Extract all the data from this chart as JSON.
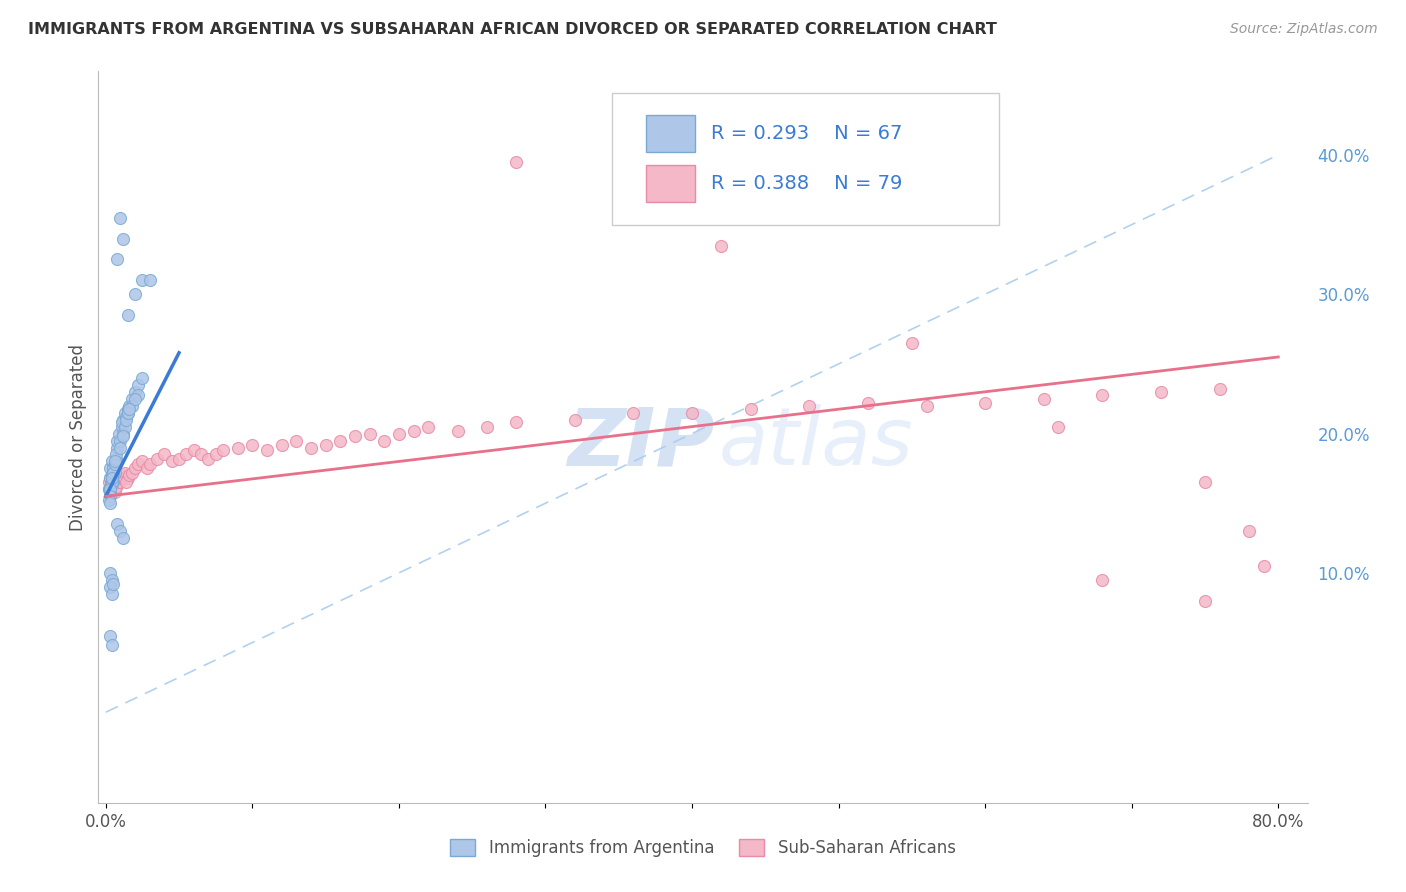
{
  "title": "IMMIGRANTS FROM ARGENTINA VS SUBSAHARAN AFRICAN DIVORCED OR SEPARATED CORRELATION CHART",
  "source": "Source: ZipAtlas.com",
  "ylabel": "Divorced or Separated",
  "xlim": [
    -0.005,
    0.82
  ],
  "ylim": [
    -0.065,
    0.46
  ],
  "x_ticks": [
    0.0,
    0.1,
    0.2,
    0.3,
    0.4,
    0.5,
    0.6,
    0.7,
    0.8
  ],
  "x_tick_labels": [
    "0.0%",
    "",
    "",
    "",
    "",
    "",
    "",
    "",
    "80.0%"
  ],
  "y_ticks_right": [
    0.1,
    0.2,
    0.3,
    0.4
  ],
  "y_tick_labels_right": [
    "10.0%",
    "20.0%",
    "30.0%",
    "40.0%"
  ],
  "argentina_color": "#aec6e8",
  "subsaharan_color": "#f4b8c8",
  "argentina_edge": "#7aaad4",
  "subsaharan_edge": "#e88aa8",
  "trend_argentina_color": "#3a7bd5",
  "trend_subsaharan_color": "#e8708a",
  "diagonal_color": "#aaccee",
  "legend_label1": "Immigrants from Argentina",
  "legend_label2": "Sub-Saharan Africans",
  "watermark_zip": "ZIP",
  "watermark_atlas": "atlas",
  "grid_color": "#cccccc",
  "argentina_x": [
    0.003,
    0.004,
    0.005,
    0.006,
    0.003,
    0.004,
    0.005,
    0.002,
    0.003,
    0.003,
    0.004,
    0.005,
    0.006,
    0.004,
    0.003,
    0.005,
    0.004,
    0.003,
    0.002,
    0.003,
    0.006,
    0.007,
    0.008,
    0.007,
    0.006,
    0.008,
    0.009,
    0.01,
    0.01,
    0.011,
    0.012,
    0.013,
    0.011,
    0.012,
    0.014,
    0.015,
    0.013,
    0.012,
    0.014,
    0.015,
    0.016,
    0.018,
    0.02,
    0.022,
    0.025,
    0.022,
    0.018,
    0.015,
    0.02,
    0.016,
    0.003,
    0.004,
    0.003,
    0.004,
    0.005,
    0.003,
    0.004,
    0.008,
    0.01,
    0.012,
    0.015,
    0.02,
    0.025,
    0.03,
    0.008,
    0.012,
    0.01
  ],
  "argentina_y": [
    0.175,
    0.18,
    0.175,
    0.172,
    0.168,
    0.17,
    0.165,
    0.16,
    0.158,
    0.162,
    0.17,
    0.175,
    0.178,
    0.165,
    0.16,
    0.172,
    0.168,
    0.155,
    0.152,
    0.15,
    0.178,
    0.182,
    0.19,
    0.185,
    0.18,
    0.195,
    0.2,
    0.195,
    0.19,
    0.205,
    0.21,
    0.215,
    0.208,
    0.2,
    0.212,
    0.218,
    0.205,
    0.198,
    0.21,
    0.215,
    0.22,
    0.225,
    0.23,
    0.235,
    0.24,
    0.228,
    0.22,
    0.215,
    0.225,
    0.218,
    0.1,
    0.095,
    0.09,
    0.085,
    0.092,
    0.055,
    0.048,
    0.135,
    0.13,
    0.125,
    0.285,
    0.3,
    0.31,
    0.31,
    0.325,
    0.34,
    0.355
  ],
  "subsaharan_x": [
    0.002,
    0.003,
    0.004,
    0.005,
    0.003,
    0.004,
    0.005,
    0.002,
    0.003,
    0.004,
    0.005,
    0.006,
    0.007,
    0.008,
    0.006,
    0.007,
    0.008,
    0.009,
    0.01,
    0.01,
    0.012,
    0.013,
    0.015,
    0.014,
    0.016,
    0.018,
    0.02,
    0.022,
    0.025,
    0.028,
    0.03,
    0.035,
    0.04,
    0.045,
    0.05,
    0.055,
    0.06,
    0.065,
    0.07,
    0.075,
    0.08,
    0.09,
    0.1,
    0.11,
    0.12,
    0.13,
    0.14,
    0.15,
    0.16,
    0.17,
    0.18,
    0.19,
    0.2,
    0.21,
    0.22,
    0.24,
    0.26,
    0.28,
    0.32,
    0.36,
    0.4,
    0.44,
    0.48,
    0.52,
    0.56,
    0.6,
    0.64,
    0.68,
    0.72,
    0.76,
    0.28,
    0.42,
    0.55,
    0.65,
    0.75,
    0.78,
    0.79,
    0.75,
    0.68
  ],
  "subsaharan_y": [
    0.165,
    0.168,
    0.17,
    0.172,
    0.162,
    0.165,
    0.168,
    0.16,
    0.158,
    0.165,
    0.168,
    0.17,
    0.162,
    0.165,
    0.158,
    0.162,
    0.165,
    0.168,
    0.17,
    0.165,
    0.168,
    0.172,
    0.168,
    0.165,
    0.17,
    0.172,
    0.175,
    0.178,
    0.18,
    0.175,
    0.178,
    0.182,
    0.185,
    0.18,
    0.182,
    0.185,
    0.188,
    0.185,
    0.182,
    0.185,
    0.188,
    0.19,
    0.192,
    0.188,
    0.192,
    0.195,
    0.19,
    0.192,
    0.195,
    0.198,
    0.2,
    0.195,
    0.2,
    0.202,
    0.205,
    0.202,
    0.205,
    0.208,
    0.21,
    0.215,
    0.215,
    0.218,
    0.22,
    0.222,
    0.22,
    0.222,
    0.225,
    0.228,
    0.23,
    0.232,
    0.395,
    0.335,
    0.265,
    0.205,
    0.165,
    0.13,
    0.105,
    0.08,
    0.095
  ],
  "arg_trend_x0": 0.0,
  "arg_trend_x1": 0.05,
  "arg_trend_y0": 0.155,
  "arg_trend_y1": 0.258,
  "sub_trend_x0": 0.0,
  "sub_trend_x1": 0.8,
  "sub_trend_y0": 0.155,
  "sub_trend_y1": 0.255
}
